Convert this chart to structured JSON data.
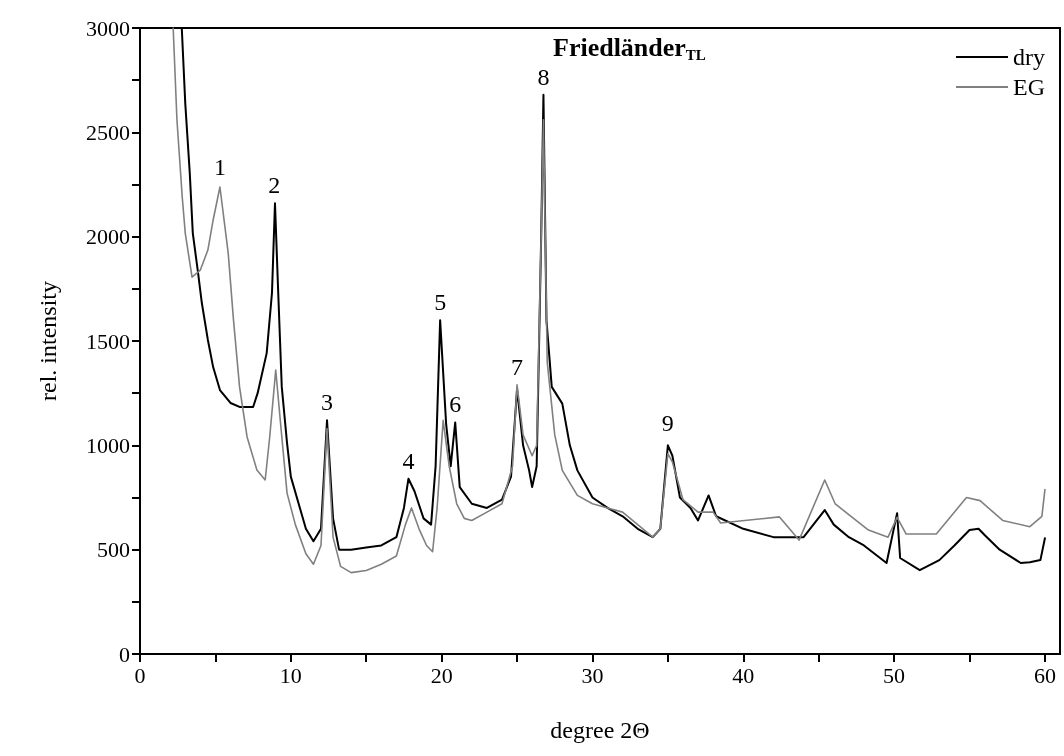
{
  "chart_data": {
    "type": "line",
    "title": "Friedländer$_{TL}$",
    "xlabel": "degree 2Θ",
    "ylabel": "rel. intensity",
    "xlim": [
      0,
      61
    ],
    "ylim": [
      0,
      3000
    ],
    "xticks": [
      0,
      {
        "value": 5,
        "label": null
      },
      10,
      {
        "value": 15,
        "label": null
      },
      20,
      {
        "value": 25,
        "label": null
      },
      30,
      {
        "value": 35,
        "label": null
      },
      40,
      {
        "value": 45,
        "label": null
      },
      50,
      {
        "value": 55,
        "label": null
      },
      60
    ],
    "yticks": [
      0,
      {
        "value": 250,
        "label": null
      },
      500,
      {
        "value": 750,
        "label": null
      },
      1000,
      {
        "value": 1250,
        "label": null
      },
      1500,
      {
        "value": 1750,
        "label": null
      },
      2000,
      {
        "value": 2250,
        "label": null
      },
      2500,
      {
        "value": 2750,
        "label": null
      },
      3000
    ],
    "grid": false,
    "legend": "top right",
    "marker": "none",
    "line_style": "solid",
    "series": [
      {
        "name": "dry",
        "color": "#000000",
        "x": [
          2.77,
          3.0,
          3.3,
          3.5,
          3.85,
          4.1,
          4.5,
          4.85,
          5.3,
          6.0,
          6.6,
          7.5,
          7.8,
          8.4,
          8.75,
          8.95,
          9.15,
          9.4,
          9.75,
          10.0,
          11.0,
          11.5,
          12.0,
          12.4,
          12.8,
          13.2,
          14.0,
          15.0,
          16.0,
          17.0,
          17.5,
          17.8,
          18.2,
          18.8,
          19.3,
          19.6,
          19.9,
          20.3,
          20.6,
          20.9,
          21.2,
          22.0,
          23.0,
          24.0,
          24.6,
          25.0,
          25.4,
          25.8,
          26.0,
          26.3,
          26.6,
          26.75,
          26.95,
          27.3,
          28.0,
          28.5,
          29.0,
          30.0,
          31.0,
          32.0,
          33.0,
          34.0,
          34.5,
          35.0,
          35.3,
          35.8,
          36.5,
          37.0,
          37.7,
          38.2,
          40.0,
          42.0,
          44.0,
          45.4,
          46.0,
          47.0,
          48.0,
          49.5,
          50.2,
          50.4,
          51.7,
          53.0,
          54.0,
          55.0,
          55.6,
          56.0,
          57.0,
          58.4,
          59.0,
          59.7,
          60.0
        ],
        "values": [
          3000,
          2640,
          2305,
          2017,
          1826,
          1682,
          1505,
          1375,
          1265,
          1203,
          1184,
          1184,
          1250,
          1442,
          1730,
          2160,
          1760,
          1280,
          1011,
          850,
          600,
          540,
          600,
          1120,
          650,
          500,
          500,
          510,
          520,
          560,
          700,
          840,
          780,
          650,
          620,
          900,
          1600,
          1100,
          900,
          1110,
          800,
          720,
          700,
          740,
          850,
          1270,
          1000,
          880,
          800,
          900,
          2000,
          2680,
          1600,
          1280,
          1200,
          1000,
          880,
          750,
          700,
          660,
          600,
          560,
          600,
          1000,
          950,
          750,
          700,
          640,
          760,
          660,
          600,
          560,
          560,
          690,
          620,
          560,
          520,
          436,
          675,
          460,
          402,
          450,
          520,
          594,
          600,
          570,
          500,
          436,
          440,
          450,
          555
        ]
      },
      {
        "name": "EG",
        "color": "#808080",
        "x": [
          2.2,
          2.45,
          2.8,
          3.0,
          3.45,
          4.0,
          4.5,
          4.85,
          5.3,
          5.6,
          5.85,
          6.2,
          6.6,
          7.1,
          7.75,
          8.3,
          8.6,
          9.0,
          9.3,
          9.75,
          10.3,
          11.0,
          11.5,
          12.0,
          12.4,
          12.8,
          13.3,
          14.0,
          15.0,
          16.0,
          17.0,
          17.6,
          18.0,
          18.5,
          19.0,
          19.4,
          19.7,
          20.1,
          20.5,
          21.0,
          21.5,
          22.0,
          23.0,
          24.0,
          24.7,
          25.0,
          25.4,
          26.0,
          26.3,
          26.6,
          26.75,
          27.0,
          27.5,
          28.0,
          29.0,
          30.0,
          31.0,
          32.0,
          33.0,
          34.0,
          34.5,
          35.0,
          35.3,
          36.0,
          37.0,
          38.0,
          38.5,
          42.4,
          43.7,
          45.4,
          46.1,
          48.3,
          49.6,
          50.2,
          50.8,
          52.8,
          54.8,
          55.7,
          57.2,
          59.0,
          59.8,
          60.0
        ],
        "values": [
          3000,
          2559,
          2190,
          2017,
          1806,
          1840,
          1936,
          2080,
          2238,
          2065,
          1920,
          1600,
          1280,
          1040,
          882,
          834,
          1040,
          1361,
          1121,
          771,
          620,
          480,
          430,
          520,
          1080,
          560,
          420,
          390,
          400,
          430,
          470,
          620,
          700,
          600,
          520,
          490,
          700,
          1120,
          900,
          720,
          650,
          640,
          680,
          720,
          900,
          1290,
          1050,
          950,
          1000,
          2000,
          2560,
          1400,
          1050,
          880,
          760,
          720,
          700,
          680,
          620,
          560,
          600,
          960,
          920,
          740,
          680,
          680,
          628,
          657,
          546,
          834,
          719,
          594,
          560,
          655,
          575,
          575,
          750,
          735,
          640,
          610,
          660,
          788
        ]
      }
    ],
    "annotations": [
      {
        "text": "1",
        "x": 5.3,
        "y": 2250
      },
      {
        "text": "2",
        "x": 8.9,
        "y": 2160
      },
      {
        "text": "3",
        "x": 12.4,
        "y": 1120
      },
      {
        "text": "4",
        "x": 17.8,
        "y": 840
      },
      {
        "text": "5",
        "x": 19.9,
        "y": 1600
      },
      {
        "text": "6",
        "x": 20.9,
        "y": 1110
      },
      {
        "text": "7",
        "x": 25.0,
        "y": 1290
      },
      {
        "text": "8",
        "x": 26.75,
        "y": 2680
      },
      {
        "text": "9",
        "x": 35.0,
        "y": 1020
      }
    ]
  }
}
